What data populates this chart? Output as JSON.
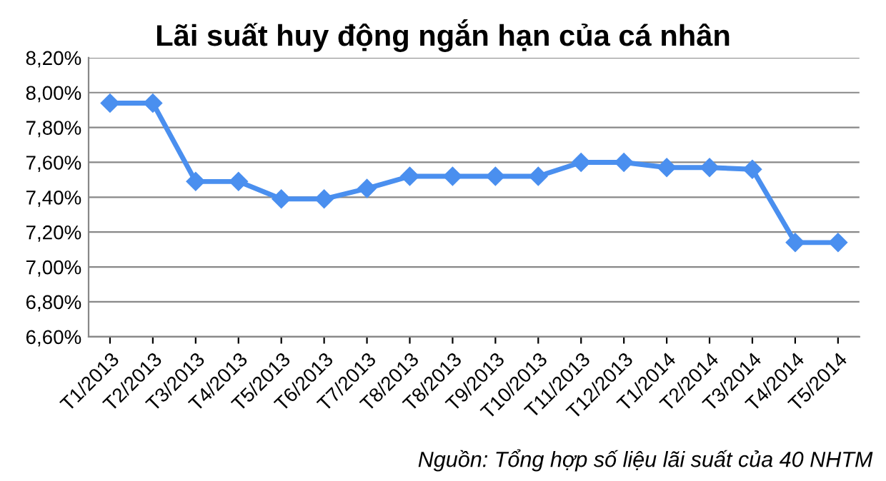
{
  "chart_data": {
    "type": "line",
    "title": "Lãi suất huy động ngắn hạn của cá nhân",
    "categories": [
      "T1/2013",
      "T2/2013",
      "T3/2013",
      "T4/2013",
      "T5/2013",
      "T6/2013",
      "T7/2013",
      "T8/2013",
      "T8/2013",
      "T9/2013",
      "T10/2013",
      "T11/2013",
      "T12/2013",
      "T1/2014",
      "T2/2014",
      "T3/2014",
      "T4/2014",
      "T5/2014"
    ],
    "series": [
      {
        "color": "#4a8fef",
        "values": [
          7.94,
          7.94,
          7.49,
          7.49,
          7.39,
          7.39,
          7.45,
          7.52,
          7.52,
          7.52,
          7.52,
          7.6,
          7.6,
          7.57,
          7.57,
          7.56,
          7.14,
          7.14
        ]
      }
    ],
    "ylim": [
      6.6,
      8.2
    ],
    "yticks": [
      {
        "value": 6.6,
        "label": "6,60%"
      },
      {
        "value": 6.8,
        "label": "6,80%"
      },
      {
        "value": 7.0,
        "label": "7,00%"
      },
      {
        "value": 7.2,
        "label": "7,20%"
      },
      {
        "value": 7.4,
        "label": "7,40%"
      },
      {
        "value": 7.6,
        "label": "7,60%"
      },
      {
        "value": 7.8,
        "label": "7,80%"
      },
      {
        "value": 8.0,
        "label": "8,00%"
      },
      {
        "value": 8.2,
        "label": "8,20%"
      }
    ],
    "grid": "y",
    "marker": "diamond",
    "line_style": "solid",
    "annotations": [
      "Nguồn: Tổng hợp số liệu lãi suất của 40 NHTM"
    ]
  }
}
